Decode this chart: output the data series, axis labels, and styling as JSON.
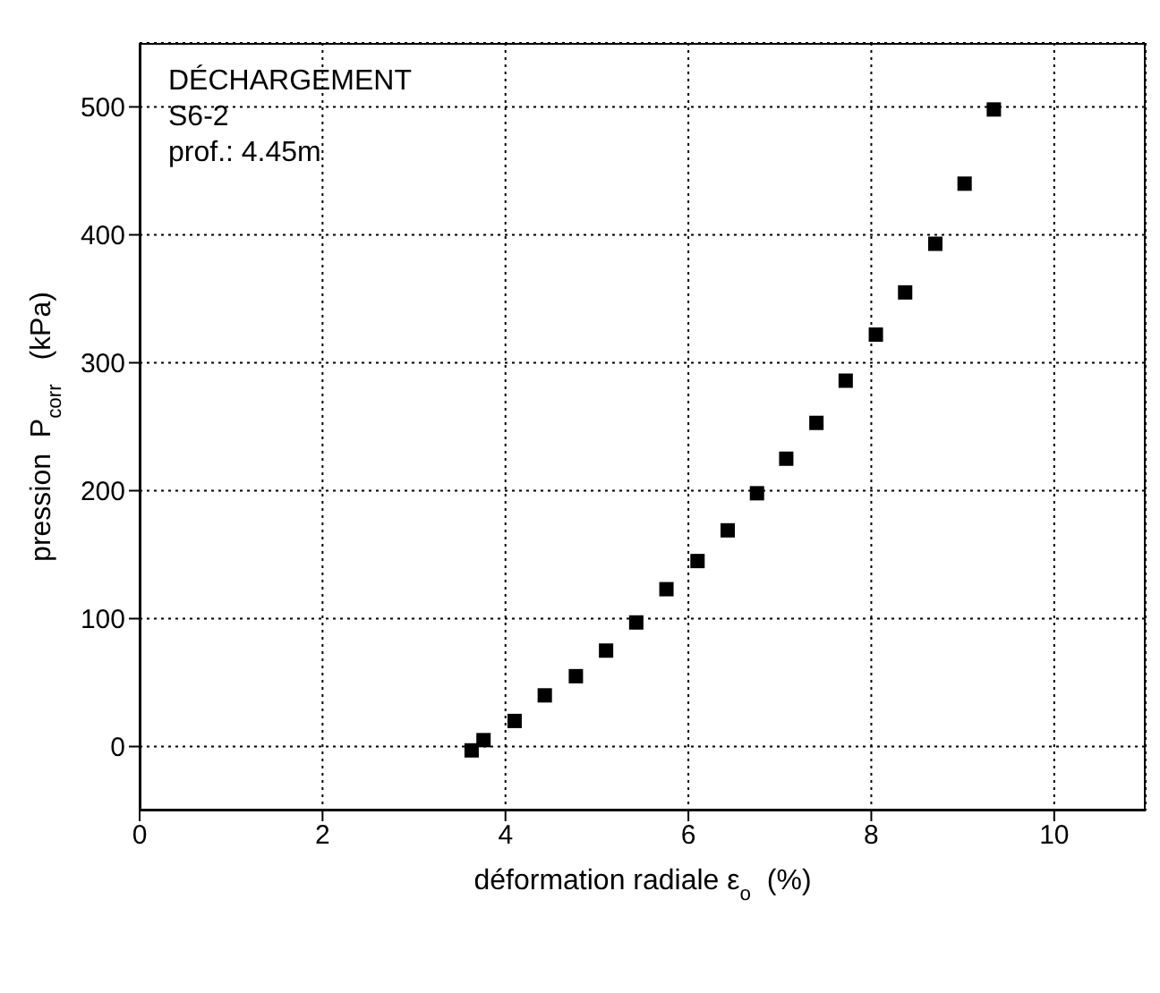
{
  "chart_data": {
    "type": "scatter",
    "xlabel": "déformation radiale ε$_{o}$ (%)",
    "ylabel": "pression  P$_{corr}$  (kPa)",
    "annotations": [
      "DÉCHARGEMENT",
      "S6-2",
      "prof.: 4.45m"
    ],
    "x": [
      3.63,
      3.76,
      4.1,
      4.43,
      4.77,
      5.1,
      5.43,
      5.76,
      6.1,
      6.43,
      6.75,
      7.07,
      7.4,
      7.72,
      8.05,
      8.37,
      8.7,
      9.02,
      9.34
    ],
    "series": [
      {
        "color": "#000000",
        "values": [
          -3,
          5,
          20,
          40,
          55,
          75,
          97,
          123,
          145,
          169,
          198,
          225,
          253,
          286,
          322,
          355,
          393,
          440,
          498
        ]
      }
    ],
    "xlim": [
      0,
      11
    ],
    "xticks": [
      0,
      2,
      4,
      6,
      8,
      10
    ],
    "ylim": [
      -50,
      550
    ],
    "yticks": [
      0,
      100,
      200,
      300,
      400,
      500
    ],
    "grid": true,
    "marker": "square",
    "line_style": "dotted"
  }
}
